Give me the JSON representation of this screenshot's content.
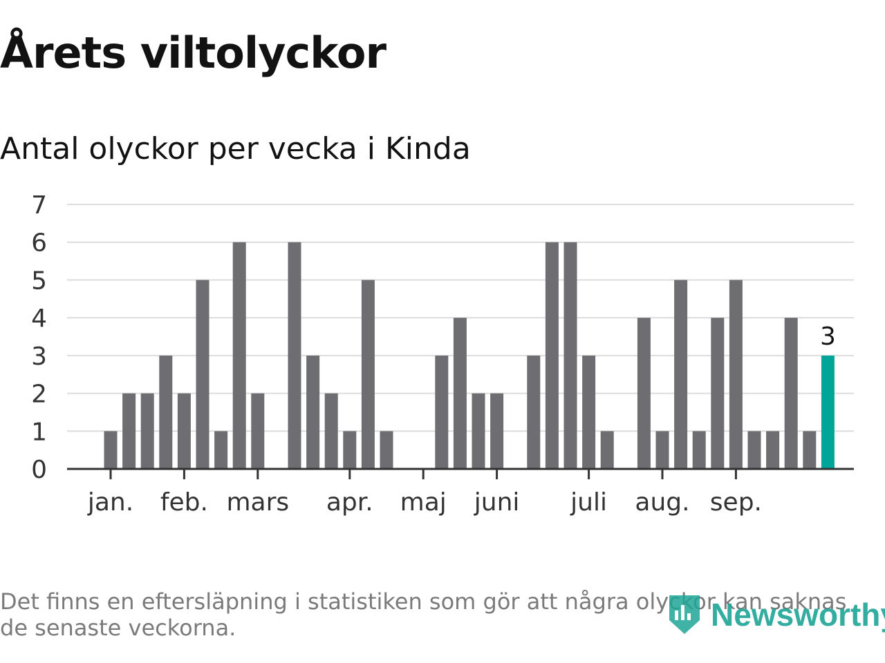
{
  "title": "Årets viltolyckor",
  "subtitle": "Antal olyckor per vecka i Kinda",
  "footnote": "Det finns en eftersläpning i statistiken som gör att några olyckor kan saknas de senaste veckorna.",
  "logo": {
    "text": "Newsworthy",
    "icon": "bar-chart-shield-icon",
    "color": "#1fa597"
  },
  "chart_data": {
    "type": "bar",
    "title": "Årets viltolyckor",
    "subtitle": "Antal olyckor per vecka i Kinda",
    "ylim": [
      0,
      7
    ],
    "y_ticks": [
      0,
      1,
      2,
      3,
      4,
      5,
      6,
      7
    ],
    "grid": true,
    "bar_color": "#6e6d72",
    "highlight_color": "#00a59a",
    "highlight_label": "3",
    "values": [
      1,
      2,
      2,
      3,
      2,
      5,
      1,
      6,
      2,
      0,
      6,
      3,
      2,
      1,
      5,
      1,
      0,
      0,
      3,
      4,
      2,
      2,
      0,
      3,
      6,
      6,
      3,
      1,
      0,
      4,
      1,
      5,
      1,
      4,
      5,
      1,
      1,
      4,
      1,
      3
    ],
    "x_ticks": [
      {
        "label": "jan.",
        "week": 1
      },
      {
        "label": "feb.",
        "week": 5
      },
      {
        "label": "mars",
        "week": 9
      },
      {
        "label": "apr.",
        "week": 14
      },
      {
        "label": "maj",
        "week": 18
      },
      {
        "label": "juni",
        "week": 22
      },
      {
        "label": "juli",
        "week": 27
      },
      {
        "label": "aug.",
        "week": 31
      },
      {
        "label": "sep.",
        "week": 35
      }
    ]
  }
}
